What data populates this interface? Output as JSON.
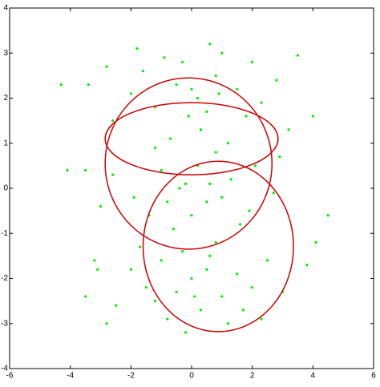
{
  "chart_data": {
    "type": "scatter",
    "xlim": [
      -6,
      6
    ],
    "ylim": [
      -4,
      4
    ],
    "xticks": [
      -6,
      -4,
      -2,
      0,
      2,
      4,
      6
    ],
    "yticks": [
      -4,
      -3,
      -2,
      -1,
      0,
      1,
      2,
      3,
      4
    ],
    "color": "#00ee00",
    "x": [
      -0.5,
      0.2,
      0.8,
      -1.2,
      1.5,
      -2.0,
      0.5,
      -0.3,
      1.0,
      2.3,
      -1.6,
      0.0,
      0.6,
      -0.9,
      1.8,
      -2.6,
      2.8,
      3.2,
      -3.4,
      -4.3,
      0.3,
      -0.7,
      1.2,
      3.5,
      -2.8,
      2.0,
      -1.8,
      0.9,
      -0.1,
      4.0,
      -0.2,
      0.5,
      -1.0,
      1.3,
      -1.9,
      2.1,
      0.0,
      -0.6,
      0.8,
      -1.4,
      1.6,
      -2.6,
      2.7,
      -3.0,
      0.2,
      -0.4,
      1.0,
      -1.2,
      2.9,
      -3.5,
      4.5,
      -4.1,
      0.6,
      -0.8,
      1.9,
      0.0,
      0.5,
      -0.5,
      1.0,
      -1.0,
      1.5,
      -1.5,
      0.3,
      -0.3,
      2.0,
      -2.0,
      0.8,
      -0.8,
      2.5,
      -2.5,
      1.2,
      -1.2,
      0.1,
      3.0,
      -3.1,
      -3.5,
      -2.8,
      3.8,
      4.1,
      1.7,
      -0.2,
      0.6,
      -1.7,
      2.3,
      -3.2
    ],
    "values": [
      2.3,
      2.0,
      2.5,
      1.8,
      2.2,
      2.1,
      1.7,
      2.8,
      3.0,
      1.9,
      2.6,
      2.2,
      3.2,
      2.9,
      1.6,
      1.5,
      2.4,
      1.3,
      2.3,
      2.3,
      1.3,
      1.1,
      1.0,
      2.95,
      2.7,
      2.8,
      3.1,
      2.1,
      1.6,
      1.6,
      0.1,
      -0.3,
      0.4,
      0.2,
      -0.2,
      0.5,
      -0.6,
      -0.9,
      0.8,
      -0.6,
      -0.8,
      0.3,
      -0.1,
      -0.4,
      0.5,
      0.0,
      -0.2,
      0.9,
      0.7,
      0.4,
      -0.6,
      0.4,
      0.1,
      -0.3,
      -0.5,
      -2.0,
      -1.8,
      -2.3,
      -2.4,
      -1.6,
      -1.9,
      -2.2,
      -2.7,
      -1.4,
      -2.2,
      -1.8,
      -1.2,
      -2.9,
      -1.6,
      -2.6,
      -3.0,
      -2.5,
      -2.4,
      -2.3,
      -1.8,
      -2.4,
      -3.0,
      -1.7,
      -1.2,
      -2.7,
      -3.2,
      -1.5,
      -1.3,
      -2.9,
      -1.6
    ],
    "ellipses": [
      {
        "cx": 0.0,
        "cy": 1.1,
        "rx": 2.85,
        "ry": 0.8,
        "color": "#cc0000"
      },
      {
        "cx": -0.1,
        "cy": 0.55,
        "rx": 2.75,
        "ry": 1.9,
        "color": "#cc0000"
      },
      {
        "cx": 0.88,
        "cy": -1.29,
        "rx": 2.48,
        "ry": 1.89,
        "color": "#cc0000"
      }
    ]
  }
}
